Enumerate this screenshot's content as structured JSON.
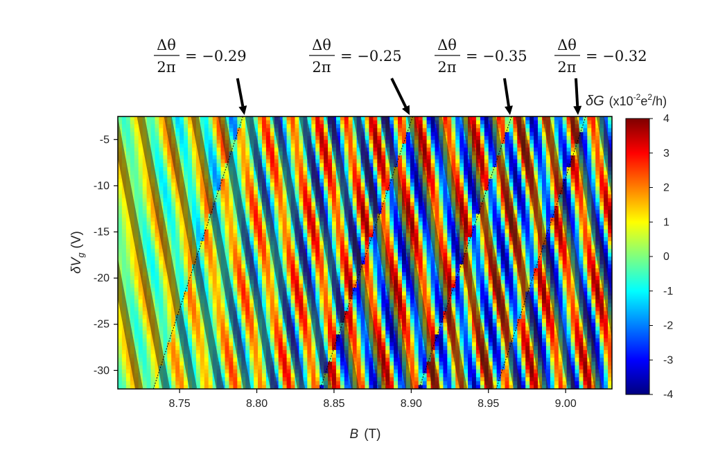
{
  "chart_data": {
    "type": "heatmap",
    "x_range": [
      8.71,
      9.03
    ],
    "y_range": [
      -32,
      -2.5
    ],
    "x_ticks": [
      8.75,
      8.8,
      8.85,
      8.9,
      8.95,
      9.0
    ],
    "x_tick_labels": [
      "8.75",
      "8.80",
      "8.85",
      "8.90",
      "8.95",
      "9.00"
    ],
    "y_ticks": [
      -5,
      -10,
      -15,
      -20,
      -25,
      -30
    ],
    "y_tick_labels": [
      "-5",
      "-10",
      "-15",
      "-20",
      "-25",
      "-30"
    ],
    "xlabel_var": "B",
    "xlabel_unit": "(T)",
    "ylabel_var": "δV",
    "ylabel_sub": "g",
    "ylabel_unit": "(V)",
    "colorbar": {
      "title_var": "δG",
      "title_unit_pre": "(x10",
      "title_exp": "-2",
      "title_unit_post": "e",
      "title_exp2": "2",
      "title_unit_end": "/h)",
      "range": [
        -4,
        4
      ],
      "ticks": [
        4,
        3,
        2,
        1,
        0,
        -1,
        -2,
        -3,
        -4
      ],
      "tick_labels": [
        "4",
        "3",
        "2",
        "1",
        "0",
        "-1",
        "-2",
        "-3",
        "-4"
      ]
    },
    "colormap": [
      "#00007f",
      "#0000ff",
      "#007fff",
      "#00ffff",
      "#7fff7f",
      "#ffff00",
      "#ff7f00",
      "#ff0000",
      "#7f0000"
    ],
    "fringe_slope_B_per_V": -0.00115,
    "fringe_period_T": 0.0175,
    "phase_jump_lines": [
      {
        "B_top": 8.791,
        "B_bottom": 8.733
      },
      {
        "B_top": 8.901,
        "B_bottom": 8.841
      },
      {
        "B_top": 8.965,
        "B_bottom": 8.905
      },
      {
        "B_top": 9.013,
        "B_bottom": 8.955
      }
    ],
    "annotations": [
      {
        "numerator": "Δθ",
        "denominator": "2π",
        "value": "= −0.29",
        "arrow_B": 8.792
      },
      {
        "numerator": "Δθ",
        "denominator": "2π",
        "value": "= −0.25",
        "arrow_B": 8.899
      },
      {
        "numerator": "Δθ",
        "denominator": "2π",
        "value": "= −0.35",
        "arrow_B": 8.964
      },
      {
        "numerator": "Δθ",
        "denominator": "2π",
        "value": "= −0.32",
        "arrow_B": 9.008
      }
    ]
  }
}
